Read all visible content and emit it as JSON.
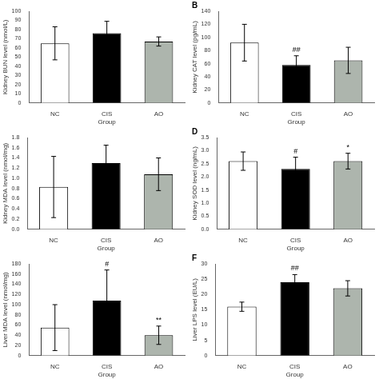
{
  "chart_data": [
    {
      "type": "bar",
      "ylabel": "Kidney BUN level (nmol/L)",
      "xlabel": "Group",
      "categories": [
        "NC",
        "CIS",
        "AO"
      ],
      "values": [
        65,
        76,
        67
      ],
      "errors": [
        18,
        13,
        5
      ],
      "colors": [
        "white",
        "black",
        "#adb5ad"
      ],
      "ylim": [
        0,
        100
      ],
      "yticks": [
        0,
        10,
        20,
        30,
        40,
        50,
        60,
        70,
        80,
        90,
        100
      ],
      "grid": false
    },
    {
      "type": "bar",
      "title": "B",
      "ylabel": "Kidney CAT level (pg/mL)",
      "xlabel": "Group",
      "categories": [
        "NC",
        "CIS",
        "AO"
      ],
      "values": [
        92,
        58,
        65
      ],
      "errors": [
        28,
        14,
        20
      ],
      "colors": [
        "white",
        "black",
        "#adb5ad"
      ],
      "annotations": [
        {
          "category": "CIS",
          "text": "##"
        }
      ],
      "ylim": [
        0,
        140
      ],
      "yticks": [
        0,
        20,
        40,
        60,
        80,
        100,
        120,
        140
      ],
      "grid": false
    },
    {
      "type": "bar",
      "ylabel": "Kidney MDA level (nmol/mg)",
      "xlabel": "Group",
      "categories": [
        "NC",
        "CIS",
        "AO"
      ],
      "values": [
        0.83,
        1.3,
        1.08
      ],
      "errors": [
        0.6,
        0.35,
        0.32
      ],
      "colors": [
        "white",
        "black",
        "#adb5ad"
      ],
      "ylim": [
        0,
        1.8
      ],
      "yticks": [
        {
          "value": 0,
          "label": "0.0"
        },
        0.2,
        0.4,
        0.6,
        0.8,
        {
          "value": 1.0,
          "label": "1.0"
        },
        1.2,
        1.4,
        1.6,
        1.8
      ],
      "grid": false
    },
    {
      "type": "bar",
      "title": "D",
      "ylabel": "Kidney SOD level (ng/mL)",
      "xlabel": "Group",
      "categories": [
        "NC",
        "CIS",
        "AO"
      ],
      "values": [
        2.6,
        2.3,
        2.6
      ],
      "errors": [
        0.35,
        0.45,
        0.3
      ],
      "colors": [
        "white",
        "black",
        "#adb5ad"
      ],
      "annotations": [
        {
          "category": "CIS",
          "text": "#"
        },
        {
          "category": "AO",
          "text": "*"
        }
      ],
      "ylim": [
        0,
        3.5
      ],
      "yticks": [
        {
          "value": 0,
          "label": "0.0"
        },
        0.5,
        {
          "value": 1.0,
          "label": "1.0"
        },
        1.5,
        {
          "value": 2.0,
          "label": "2.0"
        },
        2.5,
        {
          "value": 3.0,
          "label": "3.0"
        },
        3.5
      ],
      "grid": false
    },
    {
      "type": "bar",
      "ylabel": "Liver MDA level (nmol/mg)",
      "xlabel": "Group",
      "categories": [
        "NC",
        "CIS",
        "AO"
      ],
      "values": [
        55,
        108,
        40
      ],
      "errors": [
        45,
        60,
        18
      ],
      "colors": [
        "white",
        "black",
        "#adb5ad"
      ],
      "annotations": [
        {
          "category": "CIS",
          "text": "#"
        },
        {
          "category": "AO",
          "text": "**"
        }
      ],
      "ylim": [
        0,
        180
      ],
      "yticks": [
        0,
        20,
        40,
        60,
        80,
        100,
        120,
        140,
        160,
        180
      ],
      "grid": false
    },
    {
      "type": "bar",
      "title": "F",
      "ylabel": "Liver LPS level (EU/L)",
      "xlabel": "Group",
      "categories": [
        "NC",
        "CIS",
        "AO"
      ],
      "values": [
        16,
        24,
        22
      ],
      "errors": [
        1.5,
        2.5,
        2.5
      ],
      "colors": [
        "white",
        "black",
        "#adb5ad"
      ],
      "annotations": [
        {
          "category": "CIS",
          "text": "##"
        }
      ],
      "ylim": [
        0,
        30
      ],
      "yticks": [
        0,
        5,
        10,
        15,
        20,
        25,
        30
      ],
      "grid": false
    }
  ]
}
